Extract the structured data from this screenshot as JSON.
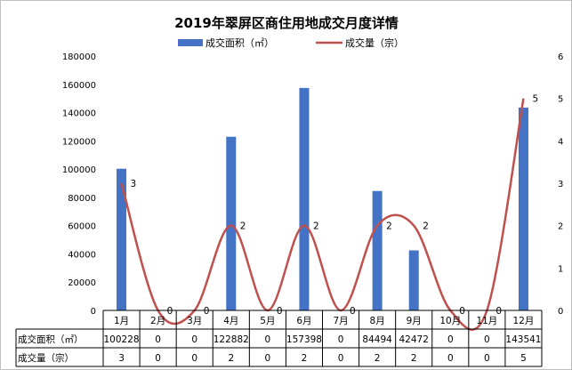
{
  "chart_data": {
    "type": "bar+line",
    "title": "2019年翠屏区商住用地成交月度详情",
    "categories": [
      "1月",
      "2月",
      "3月",
      "4月",
      "5月",
      "6月",
      "7月",
      "8月",
      "9月",
      "10月",
      "11月",
      "12月"
    ],
    "series": [
      {
        "name": "成交面积（㎡）",
        "type": "bar",
        "axis": "left",
        "color": "#4472C4",
        "values": [
          100228,
          0,
          0,
          122882,
          0,
          157398,
          0,
          84494,
          42472,
          0,
          0,
          143541
        ]
      },
      {
        "name": "成交量（宗）",
        "type": "line",
        "axis": "right",
        "color": "#C0504D",
        "values": [
          3,
          0,
          0,
          2,
          0,
          2,
          0,
          2,
          2,
          0,
          0,
          5
        ]
      }
    ],
    "y_left": {
      "min": 0,
      "max": 180000,
      "step": 20000,
      "ticks": [
        "0",
        "20000",
        "40000",
        "60000",
        "80000",
        "100000",
        "120000",
        "140000",
        "160000",
        "180000"
      ]
    },
    "y_right": {
      "min": 0,
      "max": 6,
      "step": 1,
      "ticks": [
        "0",
        "1",
        "2",
        "3",
        "4",
        "5",
        "6"
      ]
    },
    "table_rows": [
      {
        "label": "成交面积（㎡）",
        "values": [
          "100228",
          "0",
          "0",
          "122882",
          "0",
          "157398",
          "0",
          "84494",
          "42472",
          "0",
          "0",
          "143541"
        ]
      },
      {
        "label": "成交量（宗）",
        "values": [
          "3",
          "0",
          "0",
          "2",
          "0",
          "2",
          "0",
          "2",
          "2",
          "0",
          "0",
          "5"
        ]
      }
    ],
    "line_data_labels": [
      "3",
      "0",
      "0",
      "2",
      "0",
      "2",
      "0",
      "2",
      "2",
      "0",
      "0",
      "5"
    ],
    "legend_position": "top",
    "grid": false
  }
}
